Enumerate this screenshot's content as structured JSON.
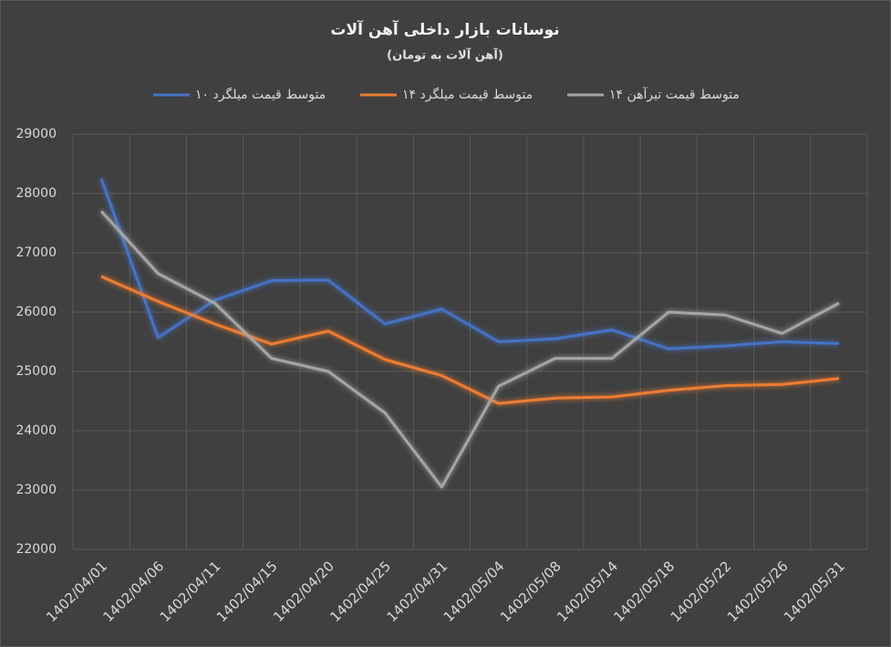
{
  "chart_data": {
    "type": "line",
    "title": "نوسانات بازار داخلی آهن آلات",
    "subtitle": "(آهن آلات به تومان)",
    "categories": [
      "1402/04/01",
      "1402/04/06",
      "1402/04/11",
      "1402/04/15",
      "1402/04/20",
      "1402/04/25",
      "1402/04/31",
      "1402/05/04",
      "1402/05/08",
      "1402/05/14",
      "1402/05/18",
      "1402/05/22",
      "1402/05/26",
      "1402/05/31"
    ],
    "series": [
      {
        "name": "متوسط قیمت میلگرد ۱۰",
        "color": "#4472c4",
        "values": [
          28250,
          25570,
          26200,
          26530,
          26540,
          25800,
          26050,
          25500,
          25550,
          25700,
          25380,
          25430,
          25500,
          25470
        ]
      },
      {
        "name": "متوسط قیمت میلگرد ۱۴",
        "color": "#ed7d31",
        "values": [
          26600,
          26180,
          25800,
          25460,
          25680,
          25200,
          24930,
          24460,
          24550,
          24570,
          24680,
          24760,
          24780,
          24880
        ]
      },
      {
        "name": "متوسط قیمت تیرآهن ۱۴",
        "color": "#a5a5a5",
        "values": [
          27700,
          26650,
          26150,
          25220,
          25000,
          24300,
          23050,
          24750,
          25220,
          25220,
          26000,
          25950,
          25640,
          26150
        ]
      }
    ],
    "ylim": [
      22000,
      29000
    ],
    "yticks": [
      22000,
      23000,
      24000,
      25000,
      26000,
      27000,
      28000,
      29000
    ],
    "grid": true,
    "legend": "top"
  }
}
